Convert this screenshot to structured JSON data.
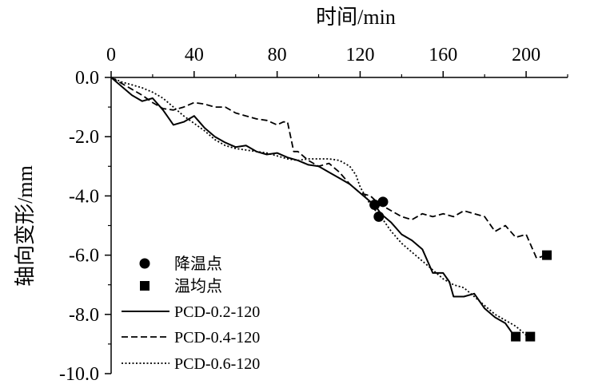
{
  "chart_data": {
    "type": "line",
    "xlabel": "时间/min",
    "ylabel": "轴向变形/mm",
    "xlim": [
      0,
      220
    ],
    "ylim": [
      -10.0,
      0.0
    ],
    "x_ticks": [
      0,
      40,
      80,
      120,
      160,
      200
    ],
    "x_tick_labels": [
      "0",
      "40",
      "80",
      "120",
      "160",
      "200"
    ],
    "y_ticks": [
      0,
      -2,
      -4,
      -6,
      -8,
      -10
    ],
    "y_tick_labels": [
      "0.0",
      "-2.0",
      "-4.0",
      "-6.0",
      "-8.0",
      "-10.0"
    ],
    "x_axis_position": "top",
    "grid": false,
    "legend_position": "bottom-left",
    "series": [
      {
        "name": "PCD-0.2-120",
        "style": "solid",
        "x": [
          0,
          5,
          10,
          15,
          20,
          25,
          28,
          30,
          35,
          40,
          45,
          50,
          55,
          60,
          65,
          70,
          75,
          80,
          85,
          90,
          95,
          100,
          105,
          110,
          115,
          120,
          125,
          128,
          130,
          135,
          140,
          145,
          150,
          155,
          160,
          163,
          165,
          170,
          175,
          180,
          185,
          190,
          195
        ],
        "y": [
          0,
          -0.3,
          -0.6,
          -0.8,
          -0.7,
          -1.1,
          -1.4,
          -1.6,
          -1.5,
          -1.3,
          -1.7,
          -2.0,
          -2.2,
          -2.35,
          -2.3,
          -2.5,
          -2.6,
          -2.55,
          -2.7,
          -2.8,
          -2.95,
          -3.0,
          -3.2,
          -3.4,
          -3.6,
          -3.9,
          -4.2,
          -4.4,
          -4.6,
          -4.9,
          -5.3,
          -5.5,
          -5.8,
          -6.6,
          -6.6,
          -6.9,
          -7.4,
          -7.4,
          -7.3,
          -7.8,
          -8.1,
          -8.3,
          -8.8
        ]
      },
      {
        "name": "PCD-0.4-120",
        "style": "dashed",
        "x": [
          0,
          5,
          10,
          15,
          20,
          25,
          30,
          35,
          40,
          45,
          50,
          55,
          60,
          65,
          70,
          75,
          80,
          83,
          85,
          88,
          90,
          95,
          100,
          105,
          110,
          115,
          120,
          125,
          128,
          130,
          135,
          140,
          145,
          150,
          155,
          160,
          165,
          170,
          175,
          180,
          185,
          190,
          195,
          200,
          205,
          210
        ],
        "y": [
          0,
          -0.2,
          -0.4,
          -0.6,
          -0.85,
          -1.05,
          -1.1,
          -1.0,
          -0.85,
          -0.9,
          -1.0,
          -1.0,
          -1.2,
          -1.3,
          -1.4,
          -1.45,
          -1.6,
          -1.5,
          -1.5,
          -2.5,
          -2.5,
          -2.8,
          -3.0,
          -2.9,
          -3.2,
          -3.6,
          -3.9,
          -4.0,
          -4.2,
          -4.3,
          -4.5,
          -4.7,
          -4.8,
          -4.6,
          -4.7,
          -4.6,
          -4.7,
          -4.5,
          -4.6,
          -4.7,
          -5.2,
          -5.0,
          -5.4,
          -5.3,
          -6.1,
          -6.0
        ]
      },
      {
        "name": "PCD-0.6-120",
        "style": "dotted",
        "x": [
          0,
          5,
          10,
          15,
          20,
          25,
          30,
          35,
          40,
          45,
          50,
          55,
          60,
          65,
          70,
          75,
          80,
          85,
          90,
          95,
          100,
          105,
          110,
          115,
          118,
          120,
          125,
          130,
          135,
          140,
          145,
          150,
          155,
          160,
          165,
          170,
          175,
          180,
          185,
          190,
          195,
          200
        ],
        "y": [
          0,
          -0.15,
          -0.25,
          -0.35,
          -0.5,
          -0.7,
          -1.0,
          -1.3,
          -1.55,
          -1.8,
          -2.1,
          -2.3,
          -2.4,
          -2.45,
          -2.5,
          -2.55,
          -2.65,
          -2.75,
          -2.8,
          -2.75,
          -2.75,
          -2.75,
          -2.8,
          -3.0,
          -3.3,
          -3.7,
          -4.3,
          -4.7,
          -5.2,
          -5.6,
          -5.9,
          -6.2,
          -6.5,
          -6.8,
          -7.0,
          -7.1,
          -7.4,
          -7.7,
          -8.0,
          -8.2,
          -8.4,
          -8.7
        ]
      }
    ],
    "markers": [
      {
        "name": "降温点",
        "shape": "circle",
        "points": [
          {
            "x": 127,
            "y": -4.3
          },
          {
            "x": 129,
            "y": -4.7
          },
          {
            "x": 131,
            "y": -4.2
          }
        ]
      },
      {
        "name": "温均点",
        "shape": "square",
        "points": [
          {
            "x": 195,
            "y": -8.75
          },
          {
            "x": 202,
            "y": -8.75
          },
          {
            "x": 210,
            "y": -6.0
          }
        ]
      }
    ],
    "legend": [
      {
        "label": "降温点",
        "kind": "circle"
      },
      {
        "label": "温均点",
        "kind": "square"
      },
      {
        "label": "PCD-0.2-120",
        "kind": "solid"
      },
      {
        "label": "PCD-0.4-120",
        "kind": "dashed"
      },
      {
        "label": "PCD-0.6-120",
        "kind": "dotted"
      }
    ]
  }
}
